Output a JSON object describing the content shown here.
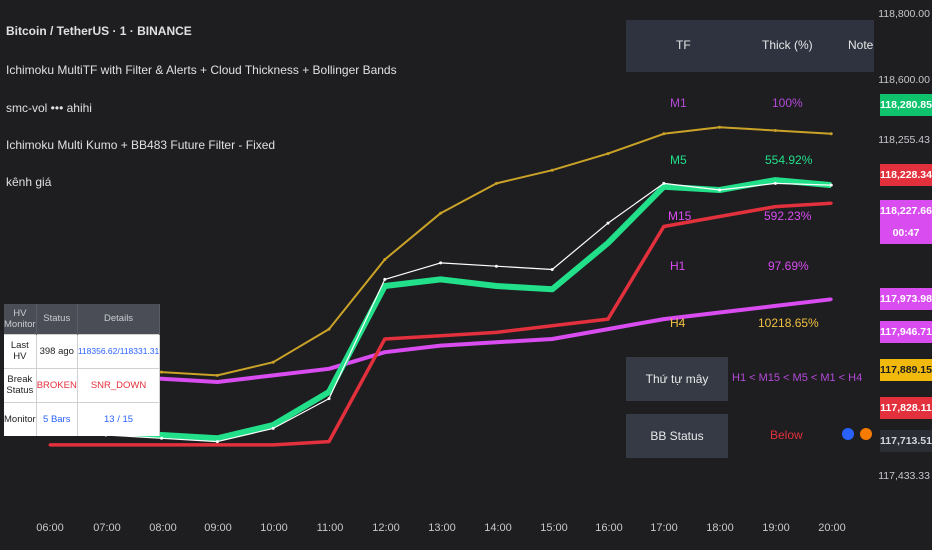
{
  "legends": [
    "Bitcoin / TetherUS · 1 · BINANCE",
    "Ichimoku MultiTF with Filter & Alerts + Cloud Thickness + Bollinger Bands",
    "smc-vol ••• ahihi",
    "Ichimoku Multi Kumo + BB483 Future Filter - Fixed",
    "kênh giá"
  ],
  "y_axis": {
    "ticks": [
      "118,800.00",
      "118,600.00",
      "118,255.43",
      "117,433.33"
    ],
    "badges": [
      {
        "text": "118,280.85",
        "bg": "#0ec36b",
        "fg": "#ffffff"
      },
      {
        "text": "118,228.34",
        "bg": "#e2303c",
        "fg": "#ffffff"
      },
      {
        "text": "118,227.66",
        "bg": "#d84cf0",
        "fg": "#ffffff"
      },
      {
        "text": "00:47",
        "bg": "#d84cf0",
        "fg": "#ffffff"
      },
      {
        "text": "117,973.98",
        "bg": "#d84cf0",
        "fg": "#ffffff"
      },
      {
        "text": "117,946.71",
        "bg": "#d84cf0",
        "fg": "#ffffff"
      },
      {
        "text": "117,889.15",
        "bg": "#f0b90b",
        "fg": "#1e1e21"
      },
      {
        "text": "117,828.11",
        "bg": "#e2303c",
        "fg": "#ffffff"
      },
      {
        "text": "117,713.51",
        "bg": "#2a2d33",
        "fg": "#d1d4dc"
      }
    ]
  },
  "x_axis": [
    "06:00",
    "07:00",
    "08:00",
    "09:00",
    "10:00",
    "11:00",
    "12:00",
    "13:00",
    "14:00",
    "15:00",
    "16:00",
    "17:00",
    "18:00",
    "19:00",
    "20:00"
  ],
  "hv_table": {
    "headers": [
      "HV Monitor",
      "Status",
      "Details"
    ],
    "rows": [
      {
        "label": "Last HV",
        "status": "398 ago",
        "details": "118356.62/118331.31"
      },
      {
        "label": "Break Status",
        "status": "BROKEN",
        "details": "SNR_DOWN"
      },
      {
        "label": "Monitor",
        "status": "5 Bars",
        "details": "13 / 15"
      }
    ]
  },
  "tf_table": {
    "headers": [
      "TF",
      "Thick (%)",
      "Note"
    ],
    "rows": [
      {
        "tf": "M1",
        "thick": "100%"
      },
      {
        "tf": "M5",
        "thick": "554.92%"
      },
      {
        "tf": "M15",
        "thick": "592.23%"
      },
      {
        "tf": "H1",
        "thick": "97.69%"
      },
      {
        "tf": "H4",
        "thick": "10218.65%"
      }
    ],
    "order_label": "Thứ tự mây",
    "order_value": "H1 < M15 < M5 < M1 < H4",
    "bb_label": "BB Status",
    "bb_value": "Below"
  },
  "colors": {
    "background": "#1e1e21",
    "bb_band": "#c9a227",
    "tenkan": "#22e08a",
    "kijun": "#e2303c",
    "magenta": "#d84cf0",
    "price": "#ffffff"
  },
  "chart_data": {
    "type": "line",
    "title": "Bitcoin / TetherUS · 1 · BINANCE",
    "x": [
      "06:00",
      "07:00",
      "08:00",
      "09:00",
      "10:00",
      "11:00",
      "12:00",
      "13:00",
      "14:00",
      "15:00",
      "16:00",
      "17:00",
      "18:00",
      "19:00",
      "19:35"
    ],
    "ylim": [
      117380,
      118800
    ],
    "series": [
      {
        "values": [
          117520,
          117510,
          117500,
          117490,
          117530,
          117620,
          117980,
          118030,
          118020,
          118010,
          118150,
          118270,
          118250,
          118270,
          118265
        ]
      },
      {
        "values": [
          117530,
          117520,
          117510,
          117500,
          117540,
          117640,
          117960,
          117980,
          117960,
          117950,
          118090,
          118260,
          118250,
          118280,
          118265
        ]
      },
      {
        "values": [
          117480,
          117480,
          117480,
          117480,
          117480,
          117490,
          117800,
          117810,
          117820,
          117840,
          117860,
          118140,
          118170,
          118200,
          118210
        ]
      },
      {
        "values": [
          117740,
          117720,
          117700,
          117690,
          117730,
          117830,
          118040,
          118180,
          118270,
          118310,
          118360,
          118420,
          118440,
          118430,
          118420
        ]
      },
      {
        "values": [
          117700,
          117690,
          117680,
          117670,
          117690,
          117710,
          117760,
          117780,
          117790,
          117800,
          117830,
          117860,
          117880,
          117900,
          117920
        ]
      }
    ]
  }
}
